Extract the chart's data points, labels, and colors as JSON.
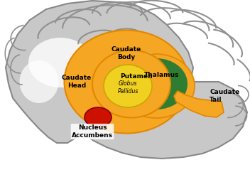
{
  "fig_w": 3.52,
  "fig_h": 2.63,
  "dpi": 100,
  "brain_bg": "#c8c8c8",
  "brain_inner": "#b0b0b0",
  "gyri_color": "#a0a0a0",
  "white_bg": "#e8e8e8",
  "orange": "#F5A623",
  "dark_orange": "#E08800",
  "green": "#2E7D32",
  "green_edge": "#1B5E20",
  "yellow": "#F0D020",
  "yellow_edge": "#C8A800",
  "red": "#CC1100",
  "red_edge": "#880000",
  "label_fs": 6.5,
  "label_bold": true,
  "structures": {
    "caudate_body": "Caudate\nBody",
    "caudate_head": "Caudate\nHead",
    "caudate_tail": "Caudate\nTail",
    "thalamus": "Thalamus",
    "putamen": "Putamen",
    "globus_pallidus": "Globus\nPallidus",
    "nucleus_accumbens": "Nucleus\nAccumbens"
  }
}
